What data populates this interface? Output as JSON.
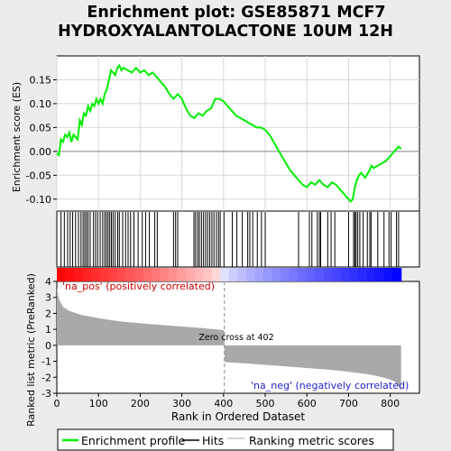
{
  "chart_data": {
    "type": "line",
    "title_line1": "Enrichment plot: GSE85871 MCF7",
    "title_line2": "HYDROXYALANTOLACTONE 10UM 12H",
    "es_panel": {
      "ylabel": "Enrichment score (ES)",
      "ylim": [
        -0.125,
        0.2
      ],
      "yticks": [
        -0.1,
        -0.05,
        0.0,
        0.05,
        0.1,
        0.15
      ],
      "ytick_labels": [
        "-0.10",
        "-0.05",
        "0.00",
        "0.05",
        "0.10",
        "0.15"
      ],
      "color": "#00ee00",
      "x": [
        0,
        5,
        10,
        15,
        20,
        25,
        30,
        35,
        40,
        45,
        50,
        55,
        60,
        65,
        70,
        75,
        80,
        85,
        90,
        95,
        100,
        105,
        110,
        115,
        120,
        125,
        130,
        135,
        140,
        145,
        150,
        155,
        160,
        170,
        180,
        190,
        200,
        210,
        220,
        230,
        240,
        250,
        260,
        270,
        280,
        290,
        300,
        310,
        320,
        330,
        340,
        350,
        360,
        370,
        380,
        390,
        400,
        410,
        420,
        430,
        440,
        450,
        460,
        470,
        480,
        490,
        500,
        510,
        520,
        530,
        540,
        550,
        560,
        570,
        580,
        590,
        600,
        610,
        620,
        630,
        640,
        650,
        660,
        670,
        680,
        690,
        700,
        705,
        710,
        715,
        720,
        725,
        730,
        740,
        750,
        755,
        760,
        770,
        780,
        790,
        800,
        810,
        815,
        820,
        826
      ],
      "y": [
        -0.004,
        -0.008,
        0.025,
        0.02,
        0.035,
        0.03,
        0.04,
        0.02,
        0.035,
        0.03,
        0.025,
        0.065,
        0.055,
        0.08,
        0.075,
        0.095,
        0.085,
        0.1,
        0.095,
        0.11,
        0.1,
        0.11,
        0.1,
        0.12,
        0.13,
        0.15,
        0.17,
        0.165,
        0.16,
        0.175,
        0.18,
        0.17,
        0.175,
        0.17,
        0.165,
        0.175,
        0.165,
        0.17,
        0.16,
        0.165,
        0.155,
        0.145,
        0.135,
        0.12,
        0.11,
        0.12,
        0.11,
        0.09,
        0.075,
        0.07,
        0.08,
        0.075,
        0.085,
        0.09,
        0.11,
        0.11,
        0.105,
        0.095,
        0.085,
        0.075,
        0.07,
        0.065,
        0.06,
        0.055,
        0.05,
        0.05,
        0.045,
        0.035,
        0.02,
        0.005,
        -0.01,
        -0.025,
        -0.04,
        -0.05,
        -0.06,
        -0.07,
        -0.075,
        -0.065,
        -0.07,
        -0.06,
        -0.07,
        -0.075,
        -0.065,
        -0.07,
        -0.08,
        -0.09,
        -0.1,
        -0.105,
        -0.1,
        -0.075,
        -0.06,
        -0.05,
        -0.045,
        -0.055,
        -0.04,
        -0.03,
        -0.035,
        -0.03,
        -0.025,
        -0.02,
        -0.01,
        0.0,
        0.005,
        0.01,
        0.005
      ]
    },
    "hits": [
      10,
      18,
      26,
      32,
      38,
      45,
      52,
      58,
      63,
      67,
      71,
      75,
      80,
      88,
      93,
      98,
      104,
      110,
      115,
      119,
      123,
      127,
      131,
      135,
      140,
      146,
      150,
      158,
      165,
      171,
      177,
      185,
      195,
      205,
      213,
      222,
      235,
      241,
      280,
      285,
      290,
      329,
      333,
      338,
      342,
      347,
      352,
      357,
      362,
      367,
      372,
      377,
      383,
      388,
      392,
      401,
      421,
      432,
      445,
      458,
      463,
      470,
      481,
      491,
      500,
      580,
      606,
      612,
      625,
      630,
      633,
      650,
      658,
      667,
      700,
      712,
      715,
      718,
      722,
      727,
      735,
      745,
      751,
      754,
      770,
      785,
      797,
      802,
      815,
      820
    ],
    "ranked_metric": {
      "ylabel": "Ranked list metric (PreRanked)",
      "ylim": [
        -3,
        4
      ],
      "yticks": [
        -3,
        -2,
        -1,
        0,
        1,
        2,
        3,
        4
      ],
      "ytick_labels": [
        "-3",
        "-2",
        "-1",
        "0",
        "1",
        "2",
        "3",
        "4"
      ],
      "xlabel": "Rank in Ordered Dataset",
      "xlim": [
        0,
        870
      ],
      "xticks": [
        0,
        100,
        200,
        300,
        400,
        500,
        600,
        700,
        800
      ],
      "xtick_labels": [
        "0",
        "100",
        "200",
        "300",
        "400",
        "500",
        "600",
        "700",
        "800"
      ],
      "n_genes": 826,
      "zero_cross": 402,
      "zero_cross_label": "Zero cross at 402",
      "pos_label": "'na_pos' (positively correlated)",
      "neg_label": "'na_neg' (negatively correlated)",
      "profile_rank": [
        0,
        5,
        15,
        30,
        60,
        100,
        150,
        200,
        250,
        300,
        350,
        401,
        402,
        403,
        450,
        500,
        550,
        600,
        650,
        700,
        750,
        790,
        810,
        820,
        826
      ],
      "profile_value": [
        3.6,
        2.9,
        2.4,
        2.15,
        1.9,
        1.7,
        1.5,
        1.38,
        1.28,
        1.18,
        1.08,
        0.95,
        0,
        -1.05,
        -1.12,
        -1.22,
        -1.32,
        -1.42,
        -1.52,
        -1.65,
        -1.82,
        -2.05,
        -2.25,
        -2.55,
        -2.85
      ],
      "color": "#a9a9a9"
    },
    "legend": [
      "Enrichment profile",
      "Hits",
      "Ranking metric scores"
    ],
    "legend_colors": [
      "#00ee00",
      "#000000",
      "#c8c8c8"
    ]
  }
}
